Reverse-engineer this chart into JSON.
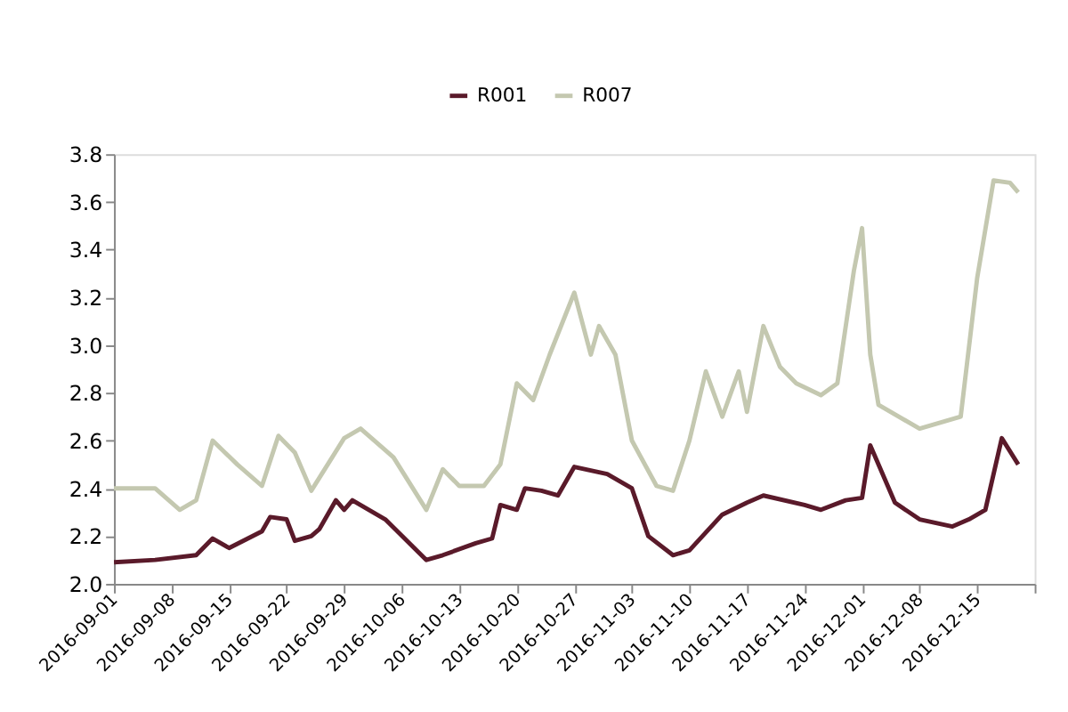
{
  "chart_data": {
    "type": "line",
    "legend": "top",
    "grid": false,
    "marker": "none",
    "line_style": "solid",
    "xlim": [
      "2016-09-01",
      "2016-12-22"
    ],
    "xticks": [
      {
        "value": "2016-09-01",
        "label": "2016-09-01"
      },
      {
        "value": "2016-09-08",
        "label": "2016-09-08"
      },
      {
        "value": "2016-09-15",
        "label": "2016-09-15"
      },
      {
        "value": "2016-09-22",
        "label": "2016-09-22"
      },
      {
        "value": "2016-09-29",
        "label": "2016-09-29"
      },
      {
        "value": "2016-10-06",
        "label": "2016-10-06"
      },
      {
        "value": "2016-10-13",
        "label": "2016-10-13"
      },
      {
        "value": "2016-10-20",
        "label": "2016-10-20"
      },
      {
        "value": "2016-10-27",
        "label": "2016-10-27"
      },
      {
        "value": "2016-11-03",
        "label": "2016-11-03"
      },
      {
        "value": "2016-11-10",
        "label": "2016-11-10"
      },
      {
        "value": "2016-11-17",
        "label": "2016-11-17"
      },
      {
        "value": "2016-11-24",
        "label": "2016-11-24"
      },
      {
        "value": "2016-12-01",
        "label": "2016-12-01"
      },
      {
        "value": "2016-12-08",
        "label": "2016-12-08"
      },
      {
        "value": "2016-12-15",
        "label": "2016-12-15"
      },
      {
        "value": "2016-12-22",
        "label": null
      }
    ],
    "ylim": [
      2.0,
      3.8
    ],
    "yticks": [
      {
        "value": 2.0,
        "label": "2.0"
      },
      2.2,
      2.4,
      2.6,
      2.8,
      {
        "value": 3.0,
        "label": "3.0"
      },
      3.2,
      3.4,
      3.6,
      3.8
    ],
    "series": [
      {
        "name": "R001",
        "color": "#5a1a2a",
        "x": [
          "2016-09-01",
          "2016-09-06",
          "2016-09-11",
          "2016-09-13",
          "2016-09-15",
          "2016-09-19",
          "2016-09-20",
          "2016-09-22",
          "2016-09-23",
          "2016-09-25",
          "2016-09-26",
          "2016-09-28",
          "2016-09-29",
          "2016-09-30",
          "2016-10-04",
          "2016-10-09",
          "2016-10-11",
          "2016-10-15",
          "2016-10-17",
          "2016-10-18",
          "2016-10-20",
          "2016-10-21",
          "2016-10-23",
          "2016-10-25",
          "2016-10-27",
          "2016-10-31",
          "2016-11-03",
          "2016-11-05",
          "2016-11-08",
          "2016-11-10",
          "2016-11-14",
          "2016-11-17",
          "2016-11-19",
          "2016-11-24",
          "2016-11-26",
          "2016-11-29",
          "2016-12-01",
          "2016-12-02",
          "2016-12-05",
          "2016-12-08",
          "2016-12-12",
          "2016-12-14",
          "2016-12-16",
          "2016-12-18",
          "2016-12-20"
        ],
        "values": [
          2.09,
          2.1,
          2.12,
          2.19,
          2.15,
          2.22,
          2.28,
          2.27,
          2.18,
          2.2,
          2.23,
          2.35,
          2.31,
          2.35,
          2.27,
          2.1,
          2.12,
          2.17,
          2.19,
          2.33,
          2.31,
          2.4,
          2.39,
          2.37,
          2.49,
          2.46,
          2.4,
          2.2,
          2.12,
          2.14,
          2.29,
          2.34,
          2.37,
          2.33,
          2.31,
          2.35,
          2.36,
          2.58,
          2.34,
          2.27,
          2.24,
          2.27,
          2.31,
          2.61,
          2.5
        ]
      },
      {
        "name": "R007",
        "color": "#c4c8b0",
        "x": [
          "2016-09-01",
          "2016-09-06",
          "2016-09-09",
          "2016-09-11",
          "2016-09-13",
          "2016-09-16",
          "2016-09-19",
          "2016-09-21",
          "2016-09-23",
          "2016-09-25",
          "2016-09-27",
          "2016-09-29",
          "2016-10-01",
          "2016-10-05",
          "2016-10-09",
          "2016-10-11",
          "2016-10-13",
          "2016-10-16",
          "2016-10-18",
          "2016-10-20",
          "2016-10-22",
          "2016-10-24",
          "2016-10-27",
          "2016-10-29",
          "2016-10-30",
          "2016-11-01",
          "2016-11-03",
          "2016-11-06",
          "2016-11-08",
          "2016-11-10",
          "2016-11-12",
          "2016-11-14",
          "2016-11-16",
          "2016-11-17",
          "2016-11-19",
          "2016-11-21",
          "2016-11-23",
          "2016-11-26",
          "2016-11-28",
          "2016-11-30",
          "2016-12-01",
          "2016-12-02",
          "2016-12-03",
          "2016-12-08",
          "2016-12-13",
          "2016-12-15",
          "2016-12-17",
          "2016-12-19",
          "2016-12-20"
        ],
        "values": [
          2.4,
          2.4,
          2.31,
          2.35,
          2.6,
          2.5,
          2.41,
          2.62,
          2.55,
          2.39,
          2.5,
          2.61,
          2.65,
          2.53,
          2.31,
          2.48,
          2.41,
          2.41,
          2.5,
          2.84,
          2.77,
          2.96,
          3.22,
          2.96,
          3.08,
          2.96,
          2.6,
          2.41,
          2.39,
          2.6,
          2.89,
          2.7,
          2.89,
          2.72,
          3.08,
          2.91,
          2.84,
          2.79,
          2.84,
          3.31,
          3.49,
          2.96,
          2.75,
          2.65,
          2.7,
          3.28,
          3.69,
          3.68,
          3.64
        ]
      }
    ]
  }
}
